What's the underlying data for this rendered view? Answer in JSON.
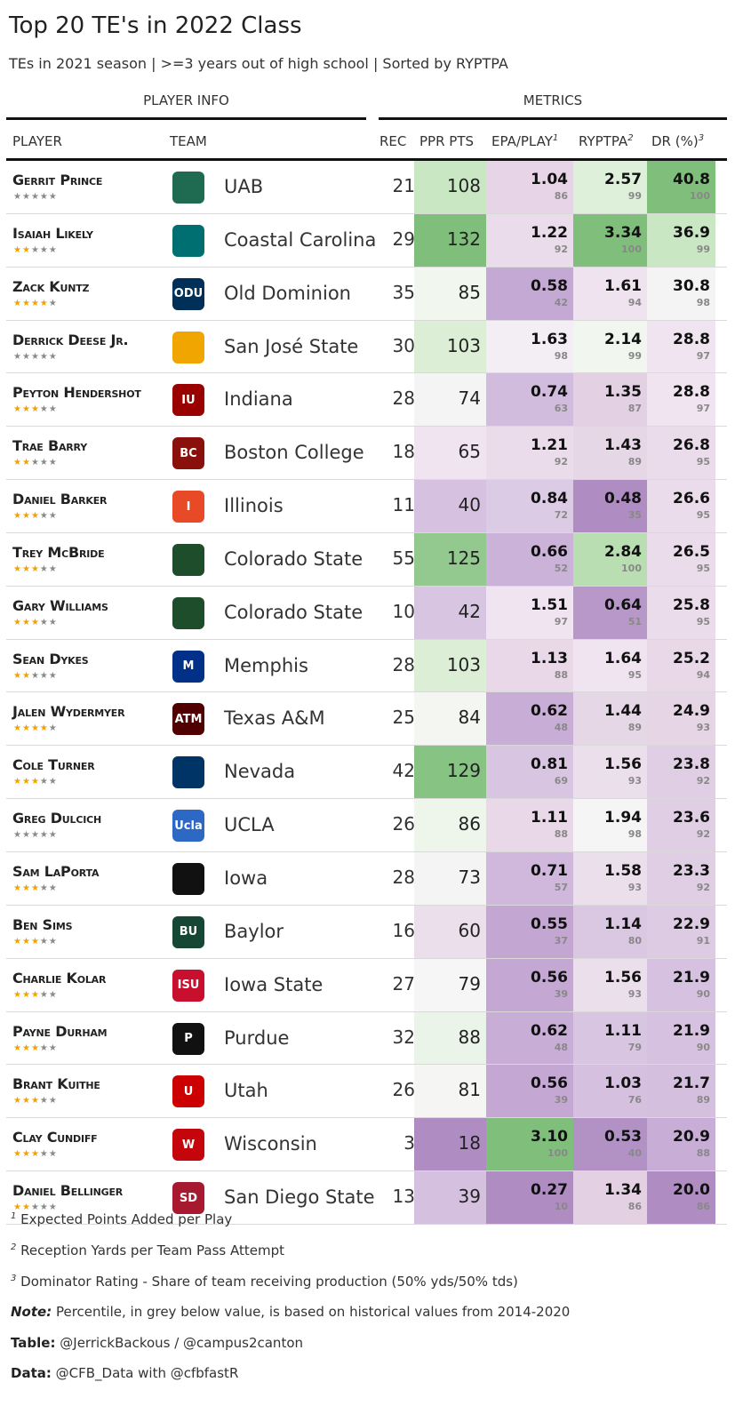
{
  "title": "Top 20 TE's in 2022 Class",
  "subtitle": "TEs in 2021 season | >=3 years out of high school | Sorted by RYPTPA",
  "groups": {
    "player_info": "PLAYER INFO",
    "metrics": "METRICS"
  },
  "columns": {
    "player": "PLAYER",
    "team": "TEAM",
    "rec": "REC",
    "ppr": "PPR PTS",
    "epa": "EPA/PLAY",
    "epa_sup": "1",
    "ryptpa": "RYPTPA",
    "ryptpa_sup": "2",
    "dr": "DR (%)",
    "dr_sup": "3"
  },
  "colors": {
    "green_high": "#7fbf7b",
    "green_low": "#e8f4e4",
    "neutral": "#f7f7f7",
    "purple_low": "#efe2ef",
    "purple_high": "#af8dc3",
    "star_on": "#f2a200",
    "star_off": "#8a8a8a"
  },
  "players": [
    {
      "name": "Gerrit Prince",
      "stars": 0,
      "team": "UAB",
      "logo_icon": "uab-dragon-icon",
      "logo_color": "#1e6b52",
      "logo_text": "",
      "rec": "21",
      "ppr": "108",
      "epa": "1.04",
      "epa_pct": "86",
      "ryp": "2.57",
      "ryp_pct": "99",
      "dr": "40.8",
      "dr_pct": "100",
      "ppr_color": "#c9e7c2",
      "epa_color": "#e7d5e7",
      "ryp_color": "#dff0da",
      "dr_color": "#7fbf7b"
    },
    {
      "name": "Isaiah Likely",
      "stars": 2,
      "team": "Coastal Carolina",
      "logo_icon": "coastal-carolina-chanticleer-icon",
      "logo_color": "#006f71",
      "logo_text": "",
      "rec": "29",
      "ppr": "132",
      "epa": "1.22",
      "epa_pct": "92",
      "ryp": "3.34",
      "ryp_pct": "100",
      "dr": "36.9",
      "dr_pct": "99",
      "ppr_color": "#7fbf7b",
      "epa_color": "#eadcea",
      "ryp_color": "#7fbf7b",
      "dr_color": "#c9e7c2"
    },
    {
      "name": "Zack Kuntz",
      "stars": 4,
      "team": "Old Dominion",
      "logo_icon": "odu-crown-icon",
      "logo_color": "#003057",
      "logo_text": "ODU",
      "rec": "35",
      "ppr": "85",
      "epa": "0.58",
      "epa_pct": "42",
      "ryp": "1.61",
      "ryp_pct": "94",
      "dr": "30.8",
      "dr_pct": "98",
      "ppr_color": "#f1f7ee",
      "epa_color": "#c4a9d4",
      "ryp_color": "#eee3ee",
      "dr_color": "#f4f4f4"
    },
    {
      "name": "Derrick Deese Jr.",
      "stars": 0,
      "team": "San José State",
      "logo_icon": "spartan-helmet-icon",
      "logo_color": "#f0a500",
      "logo_text": "",
      "rec": "30",
      "ppr": "103",
      "epa": "1.63",
      "epa_pct": "98",
      "ryp": "2.14",
      "ryp_pct": "99",
      "dr": "28.8",
      "dr_pct": "97",
      "ppr_color": "#dcefd6",
      "epa_color": "#f3eef3",
      "ryp_color": "#f1f7ee",
      "dr_color": "#efe4ef"
    },
    {
      "name": "Peyton Hendershot",
      "stars": 3,
      "team": "Indiana",
      "logo_icon": "indiana-iu-icon",
      "logo_color": "#990000",
      "logo_text": "IU",
      "rec": "28",
      "ppr": "74",
      "epa": "0.74",
      "epa_pct": "63",
      "ryp": "1.35",
      "ryp_pct": "87",
      "dr": "28.8",
      "dr_pct": "97",
      "ppr_color": "#f4f4f4",
      "epa_color": "#d2bcdd",
      "ryp_color": "#e3d1e3",
      "dr_color": "#efe4ef"
    },
    {
      "name": "Trae Barry",
      "stars": 2,
      "team": "Boston College",
      "logo_icon": "boston-college-bc-icon",
      "logo_color": "#8a100b",
      "logo_text": "BC",
      "rec": "18",
      "ppr": "65",
      "epa": "1.21",
      "epa_pct": "92",
      "ryp": "1.43",
      "ryp_pct": "89",
      "dr": "26.8",
      "dr_pct": "95",
      "ppr_color": "#efe4ef",
      "epa_color": "#eadcea",
      "ryp_color": "#e6d7e6",
      "dr_color": "#eadcea"
    },
    {
      "name": "Daniel Barker",
      "stars": 3,
      "team": "Illinois",
      "logo_icon": "illinois-block-i-icon",
      "logo_color": "#e84a27",
      "logo_text": "I",
      "rec": "11",
      "ppr": "40",
      "epa": "0.84",
      "epa_pct": "72",
      "ryp": "0.48",
      "ryp_pct": "35",
      "dr": "26.6",
      "dr_pct": "95",
      "ppr_color": "#d6c2e0",
      "epa_color": "#dccbe4",
      "ryp_color": "#af8dc3",
      "dr_color": "#eadcea"
    },
    {
      "name": "Trey McBride",
      "stars": 3,
      "team": "Colorado State",
      "logo_icon": "colorado-state-ram-icon",
      "logo_color": "#1e4d2b",
      "logo_text": "",
      "rec": "55",
      "ppr": "125",
      "epa": "0.66",
      "epa_pct": "52",
      "ryp": "2.84",
      "ryp_pct": "100",
      "dr": "26.5",
      "dr_pct": "95",
      "ppr_color": "#93c98e",
      "epa_color": "#cbb2d8",
      "ryp_color": "#b9deb2",
      "dr_color": "#eadcea"
    },
    {
      "name": "Gary Williams",
      "stars": 3,
      "team": "Colorado State",
      "logo_icon": "colorado-state-ram-icon",
      "logo_color": "#1e4d2b",
      "logo_text": "",
      "rec": "10",
      "ppr": "42",
      "epa": "1.51",
      "epa_pct": "97",
      "ryp": "0.64",
      "ryp_pct": "51",
      "dr": "25.8",
      "dr_pct": "95",
      "ppr_color": "#d8c5e1",
      "epa_color": "#efe4ef",
      "ryp_color": "#b898c9",
      "dr_color": "#eadcea"
    },
    {
      "name": "Sean Dykes",
      "stars": 2,
      "team": "Memphis",
      "logo_icon": "memphis-tiger-icon",
      "logo_color": "#003087",
      "logo_text": "M",
      "rec": "28",
      "ppr": "103",
      "epa": "1.13",
      "epa_pct": "88",
      "ryp": "1.64",
      "ryp_pct": "95",
      "dr": "25.2",
      "dr_pct": "94",
      "ppr_color": "#dcefd6",
      "epa_color": "#e8d8e8",
      "ryp_color": "#efe4ef",
      "dr_color": "#e8d8e8"
    },
    {
      "name": "Jalen Wydermyer",
      "stars": 4,
      "team": "Texas A&M",
      "logo_icon": "texas-am-atm-icon",
      "logo_color": "#500000",
      "logo_text": "ATM",
      "rec": "25",
      "ppr": "84",
      "epa": "0.62",
      "epa_pct": "48",
      "ryp": "1.44",
      "ryp_pct": "89",
      "dr": "24.9",
      "dr_pct": "93",
      "ppr_color": "#f3f6f1",
      "epa_color": "#c8aed6",
      "ryp_color": "#e6d7e6",
      "dr_color": "#e5d5e5"
    },
    {
      "name": "Cole Turner",
      "stars": 3,
      "team": "Nevada",
      "logo_icon": "nevada-wolf-icon",
      "logo_color": "#003366",
      "logo_text": "",
      "rec": "42",
      "ppr": "129",
      "epa": "0.81",
      "epa_pct": "69",
      "ryp": "1.56",
      "ryp_pct": "93",
      "dr": "23.8",
      "dr_pct": "92",
      "ppr_color": "#87c383",
      "epa_color": "#d8c5e1",
      "ryp_color": "#ebdfeb",
      "dr_color": "#e0cfe4"
    },
    {
      "name": "Greg Dulcich",
      "stars": 0,
      "team": "UCLA",
      "logo_icon": "ucla-script-icon",
      "logo_color": "#2d68c4",
      "logo_text": "Ucla",
      "rec": "26",
      "ppr": "86",
      "epa": "1.11",
      "epa_pct": "88",
      "ryp": "1.94",
      "ryp_pct": "98",
      "dr": "23.6",
      "dr_pct": "92",
      "ppr_color": "#eef5eb",
      "epa_color": "#e8d8e8",
      "ryp_color": "#f5f5f5",
      "dr_color": "#e0cfe4"
    },
    {
      "name": "Sam LaPorta",
      "stars": 3,
      "team": "Iowa",
      "logo_icon": "iowa-hawkeye-icon",
      "logo_color": "#111111",
      "logo_text": "",
      "rec": "28",
      "ppr": "73",
      "epa": "0.71",
      "epa_pct": "57",
      "ryp": "1.58",
      "ryp_pct": "93",
      "dr": "23.3",
      "dr_pct": "92",
      "ppr_color": "#f4f4f4",
      "epa_color": "#cfb8db",
      "ryp_color": "#ebdfeb",
      "dr_color": "#e0cfe4"
    },
    {
      "name": "Ben Sims",
      "stars": 3,
      "team": "Baylor",
      "logo_icon": "baylor-bu-icon",
      "logo_color": "#154734",
      "logo_text": "BU",
      "rec": "16",
      "ppr": "60",
      "epa": "0.55",
      "epa_pct": "37",
      "ryp": "1.14",
      "ryp_pct": "80",
      "dr": "22.9",
      "dr_pct": "91",
      "ppr_color": "#ebdfeb",
      "epa_color": "#c3a6d2",
      "ryp_color": "#dac8e2",
      "dr_color": "#ddcbe3"
    },
    {
      "name": "Charlie Kolar",
      "stars": 3,
      "team": "Iowa State",
      "logo_icon": "iowa-state-i-icon",
      "logo_color": "#c8102e",
      "logo_text": "ISU",
      "rec": "27",
      "ppr": "79",
      "epa": "0.56",
      "epa_pct": "39",
      "ryp": "1.56",
      "ryp_pct": "93",
      "dr": "21.9",
      "dr_pct": "90",
      "ppr_color": "#f6f6f6",
      "epa_color": "#c4a8d3",
      "ryp_color": "#ebdfeb",
      "dr_color": "#d6c2e0"
    },
    {
      "name": "Payne Durham",
      "stars": 3,
      "team": "Purdue",
      "logo_icon": "purdue-p-icon",
      "logo_color": "#111111",
      "logo_text": "P",
      "rec": "32",
      "ppr": "88",
      "epa": "0.62",
      "epa_pct": "48",
      "ryp": "1.11",
      "ryp_pct": "79",
      "dr": "21.9",
      "dr_pct": "90",
      "ppr_color": "#ebf4e8",
      "epa_color": "#c8aed6",
      "ryp_color": "#d8c5e1",
      "dr_color": "#d6c2e0"
    },
    {
      "name": "Brant Kuithe",
      "stars": 3,
      "team": "Utah",
      "logo_icon": "utah-u-icon",
      "logo_color": "#cc0000",
      "logo_text": "U",
      "rec": "26",
      "ppr": "81",
      "epa": "0.56",
      "epa_pct": "39",
      "ryp": "1.03",
      "ryp_pct": "76",
      "dr": "21.7",
      "dr_pct": "89",
      "ppr_color": "#f5f6f4",
      "epa_color": "#c4a8d3",
      "ryp_color": "#d5c0df",
      "dr_color": "#d4bfde"
    },
    {
      "name": "Clay Cundiff",
      "stars": 3,
      "team": "Wisconsin",
      "logo_icon": "wisconsin-w-icon",
      "logo_color": "#c5050c",
      "logo_text": "W",
      "rec": "3",
      "ppr": "18",
      "epa": "3.10",
      "epa_pct": "100",
      "ryp": "0.53",
      "ryp_pct": "40",
      "dr": "20.9",
      "dr_pct": "88",
      "ppr_color": "#af8dc3",
      "epa_color": "#7fbf7b",
      "ryp_color": "#b292c5",
      "dr_color": "#c8aed6"
    },
    {
      "name": "Daniel Bellinger",
      "stars": 2,
      "team": "San Diego State",
      "logo_icon": "san-diego-state-sds-icon",
      "logo_color": "#a6192e",
      "logo_text": "SD",
      "rec": "13",
      "ppr": "39",
      "epa": "0.27",
      "epa_pct": "10",
      "ryp": "1.34",
      "ryp_pct": "86",
      "dr": "20.0",
      "dr_pct": "86",
      "ppr_color": "#d5c0df",
      "epa_color": "#af8dc3",
      "ryp_color": "#e3d1e3",
      "dr_color": "#af8dc3"
    }
  ],
  "footnotes": {
    "f1_sup": "1",
    "f1": "Expected Points Added per Play",
    "f2_sup": "2",
    "f2": "Reception Yards per Team Pass Attempt",
    "f3_sup": "3",
    "f3": "Dominator Rating - Share of team receiving production (50% yds/50% tds)",
    "note_label": "Note:",
    "note": "Percentile, in grey below value, is based on historical values from 2014-2020",
    "table_label": "Table:",
    "table": "@JerrickBackous / @campus2canton",
    "data_label": "Data:",
    "data": "@CFB_Data with @cfbfastR"
  }
}
